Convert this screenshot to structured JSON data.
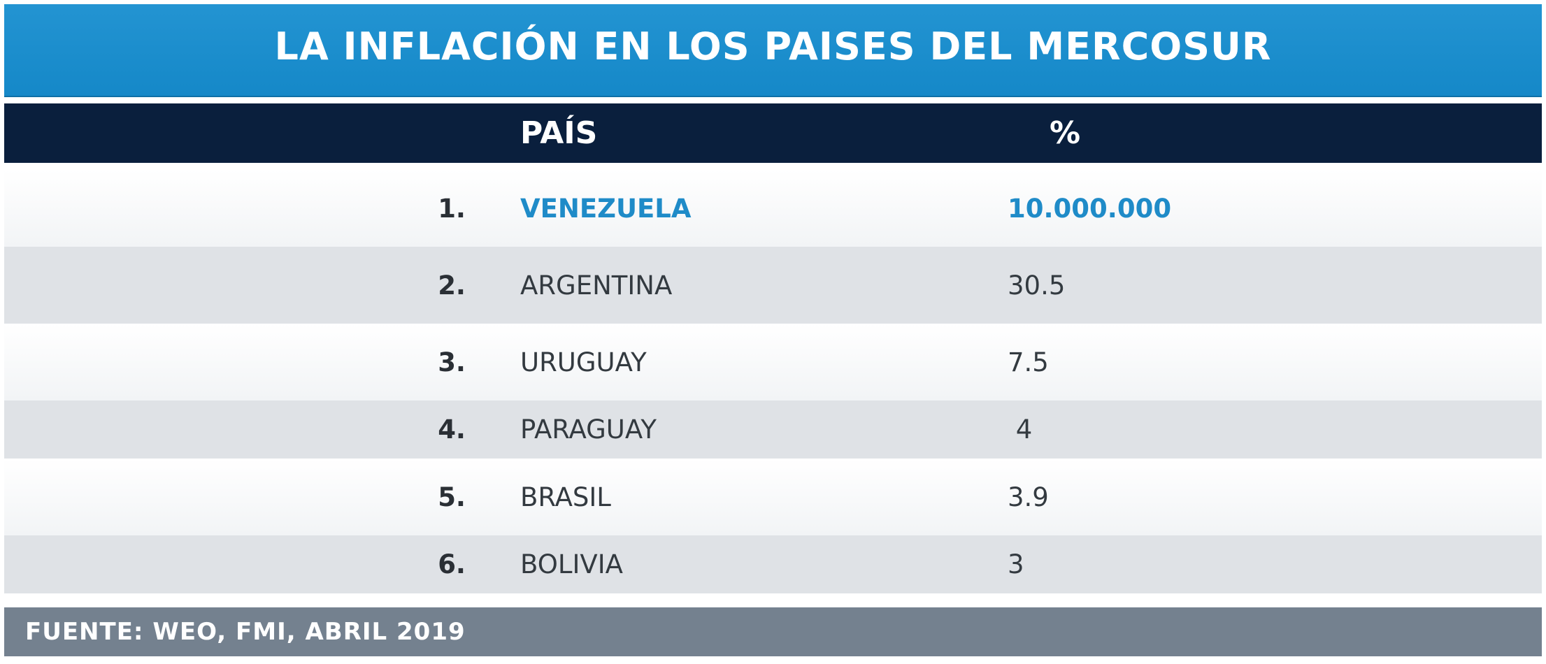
{
  "chart_data": {
    "type": "table",
    "title": "LA INFLACIÓN EN LOS PAISES DEL MERCOSUR",
    "columns": [
      "PAÍS",
      "%"
    ],
    "rows": [
      {
        "rank": "1.",
        "country": "VENEZUELA",
        "value": "10.000.000"
      },
      {
        "rank": "2.",
        "country": "ARGENTINA",
        "value": "30.5"
      },
      {
        "rank": "3.",
        "country": "URUGUAY",
        "value": "7.5"
      },
      {
        "rank": "4.",
        "country": "PARAGUAY",
        "value": " 4"
      },
      {
        "rank": "5.",
        "country": "BRASIL",
        "value": "3.9"
      },
      {
        "rank": "6.",
        "country": "BOLIVIA",
        "value": "3"
      }
    ],
    "source": "FUENTE: WEO, FMI, ABRIL 2019",
    "highlight_row": 0
  },
  "colors": {
    "title_bar": "#1b8fcd",
    "header_row": "#0a1f3d",
    "highlight_text": "#1f8bc8",
    "alt_row": "#dfe2e6",
    "footer": "#74818f"
  }
}
